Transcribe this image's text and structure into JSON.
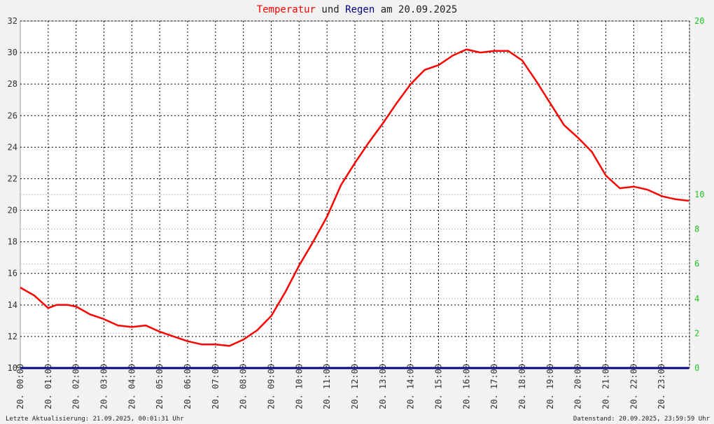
{
  "title": {
    "part1": "Temperatur",
    "part2": " und ",
    "part3": "Regen",
    "part4": " am 20.09.2025"
  },
  "colors": {
    "temperature": "#ff0000",
    "rain": "#000080",
    "right_axis": "#22c522",
    "title_dark": "#222222"
  },
  "footer": {
    "left": "Letzte Aktualisierung: 21.09.2025, 00:01:31 Uhr",
    "right": "Datenstand: 20.09.2025, 23:59:59 Uhr"
  },
  "chart_data": {
    "type": "line",
    "grid": true,
    "y_left": {
      "range": [
        10,
        32
      ],
      "ticks": [
        "10",
        "12",
        "14",
        "16",
        "18",
        "20",
        "22",
        "24",
        "26",
        "28",
        "30",
        "32"
      ]
    },
    "y_right": {
      "range": [
        0,
        20
      ],
      "ticks": [
        "0",
        "2",
        "4",
        "6",
        "8",
        "10",
        "20"
      ]
    },
    "x_ticks": [
      "20. 00:00",
      "20. 01:00",
      "20. 02:00",
      "20. 03:00",
      "20. 04:00",
      "20. 05:00",
      "20. 06:00",
      "20. 07:00",
      "20. 08:00",
      "20. 09:00",
      "20. 10:00",
      "20. 11:00",
      "20. 12:00",
      "20. 13:00",
      "20. 14:00",
      "20. 15:00",
      "20. 16:00",
      "20. 17:00",
      "20. 18:00",
      "20. 19:00",
      "20. 20:00",
      "20. 21:00",
      "20. 22:00",
      "20. 23:00"
    ],
    "series": [
      {
        "name": "Temperatur",
        "x": [
          0,
          0.5,
          1.0,
          1.3,
          1.7,
          2.0,
          2.5,
          3.0,
          3.5,
          4.0,
          4.5,
          5.0,
          5.5,
          6.0,
          6.5,
          7.0,
          7.5,
          8.0,
          8.5,
          9.0,
          9.5,
          10.0,
          10.5,
          11.0,
          11.5,
          12.0,
          12.5,
          13.0,
          13.5,
          14.0,
          14.5,
          15.0,
          15.5,
          16.0,
          16.5,
          17.0,
          17.5,
          18.0,
          18.5,
          19.0,
          19.5,
          20.0,
          20.5,
          21.0,
          21.5,
          22.0,
          22.5,
          23.0,
          23.5,
          23.98
        ],
        "y": [
          15.1,
          14.6,
          13.8,
          14.0,
          14.0,
          13.9,
          13.4,
          13.1,
          12.7,
          12.6,
          12.7,
          12.3,
          12.0,
          11.7,
          11.5,
          11.5,
          11.4,
          11.8,
          12.4,
          13.3,
          14.8,
          16.5,
          18.0,
          19.6,
          21.6,
          23.0,
          24.3,
          25.5,
          26.8,
          28.0,
          28.9,
          29.2,
          29.8,
          30.2,
          30.0,
          30.1,
          30.1,
          29.5,
          28.2,
          26.8,
          25.4,
          24.6,
          23.7,
          22.2,
          21.4,
          21.5,
          21.3,
          20.9,
          20.7,
          20.6
        ]
      },
      {
        "name": "Regen",
        "x": [
          0,
          23.98
        ],
        "y": [
          0,
          0
        ]
      }
    ]
  }
}
